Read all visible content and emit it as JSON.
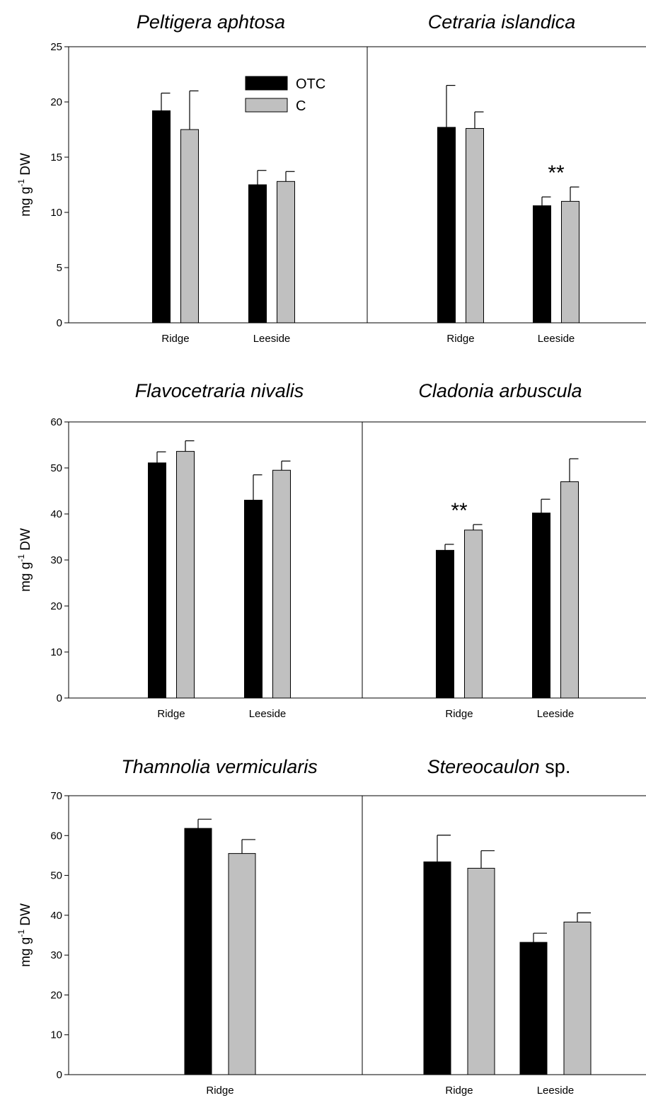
{
  "chart_data": [
    {
      "type": "bar",
      "title": "Peltigera aphtosa",
      "title_suffix": "",
      "ylabel": "mg g-1 DW",
      "ylabel_parts": [
        "mg g",
        "-1",
        " DW"
      ],
      "ylim": [
        0,
        25
      ],
      "yticks": [
        0,
        5,
        10,
        15,
        20,
        25
      ],
      "categories": [
        "Ridge",
        "Leeside"
      ],
      "series": [
        {
          "name": "OTC",
          "color": "#000000",
          "values": [
            19.2,
            12.5
          ],
          "errors": [
            1.6,
            1.3
          ]
        },
        {
          "name": "C",
          "color": "#c0c0c0",
          "values": [
            17.5,
            12.8
          ],
          "errors": [
            3.5,
            0.9
          ]
        }
      ],
      "significance": [],
      "legend": {
        "entries": [
          "OTC",
          "C"
        ],
        "position": "top-center"
      }
    },
    {
      "type": "bar",
      "title": "Cetraria islandica",
      "title_suffix": "",
      "ylim": [
        0,
        25
      ],
      "categories": [
        "Ridge",
        "Leeside"
      ],
      "series": [
        {
          "name": "OTC",
          "color": "#000000",
          "values": [
            17.7,
            10.6
          ],
          "errors": [
            3.8,
            0.8
          ]
        },
        {
          "name": "C",
          "color": "#c0c0c0",
          "values": [
            17.6,
            11.0
          ],
          "errors": [
            1.5,
            1.3
          ]
        }
      ],
      "significance": [
        {
          "category_index": 1,
          "text": "**"
        }
      ]
    },
    {
      "type": "bar",
      "title": "Flavocetraria nivalis",
      "title_suffix": "",
      "ylabel": "mg g-1 DW",
      "ylabel_parts": [
        "mg g",
        "-1",
        " DW"
      ],
      "ylim": [
        0,
        60
      ],
      "yticks": [
        0,
        10,
        20,
        30,
        40,
        50,
        60
      ],
      "categories": [
        "Ridge",
        "Leeside"
      ],
      "series": [
        {
          "name": "OTC",
          "color": "#000000",
          "values": [
            51.1,
            43.0
          ],
          "errors": [
            2.4,
            5.5
          ]
        },
        {
          "name": "C",
          "color": "#c0c0c0",
          "values": [
            53.6,
            49.5
          ],
          "errors": [
            2.3,
            2.0
          ]
        }
      ],
      "significance": []
    },
    {
      "type": "bar",
      "title": "Cladonia arbuscula",
      "title_suffix": "",
      "ylim": [
        0,
        60
      ],
      "categories": [
        "Ridge",
        "Leeside"
      ],
      "series": [
        {
          "name": "OTC",
          "color": "#000000",
          "values": [
            32.1,
            40.2
          ],
          "errors": [
            1.3,
            3.0
          ]
        },
        {
          "name": "C",
          "color": "#c0c0c0",
          "values": [
            36.5,
            47.0
          ],
          "errors": [
            1.2,
            5.0
          ]
        }
      ],
      "significance": [
        {
          "category_index": 0,
          "text": "**"
        }
      ]
    },
    {
      "type": "bar",
      "title": "Thamnolia vermicularis",
      "title_suffix": "",
      "ylabel": "mg g-1 DW",
      "ylabel_parts": [
        "mg g",
        "-1",
        " DW"
      ],
      "ylim": [
        0,
        70
      ],
      "yticks": [
        0,
        10,
        20,
        30,
        40,
        50,
        60,
        70
      ],
      "categories": [
        "Ridge"
      ],
      "series": [
        {
          "name": "OTC",
          "color": "#000000",
          "values": [
            61.8
          ],
          "errors": [
            2.3
          ]
        },
        {
          "name": "C",
          "color": "#c0c0c0",
          "values": [
            55.5
          ],
          "errors": [
            3.5
          ]
        }
      ],
      "significance": []
    },
    {
      "type": "bar",
      "title": "Stereocaulon",
      "title_suffix": " sp.",
      "ylim": [
        0,
        70
      ],
      "categories": [
        "Ridge",
        "Leeside"
      ],
      "series": [
        {
          "name": "OTC",
          "color": "#000000",
          "values": [
            53.4,
            33.2
          ],
          "errors": [
            6.7,
            2.3
          ]
        },
        {
          "name": "C",
          "color": "#c0c0c0",
          "values": [
            51.8,
            38.3
          ],
          "errors": [
            4.4,
            2.3
          ]
        }
      ],
      "significance": []
    }
  ]
}
